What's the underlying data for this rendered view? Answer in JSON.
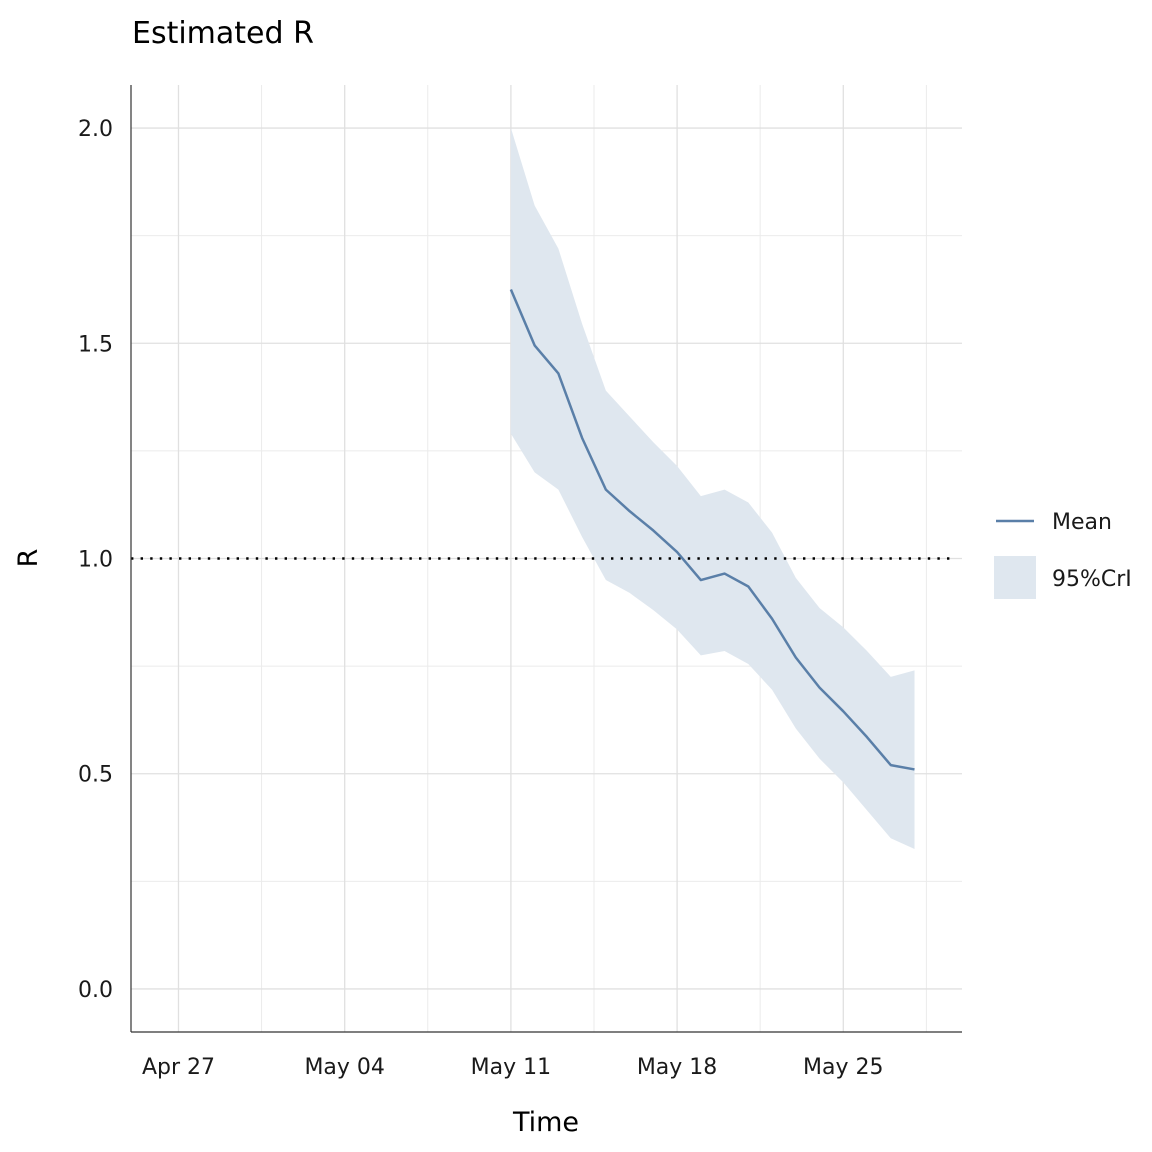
{
  "chart_data": {
    "type": "line",
    "title": "Estimated R",
    "xlabel": "Time",
    "ylabel": "R",
    "xlim": [
      "2020-04-25",
      "2020-05-30"
    ],
    "ylim": [
      -0.1,
      2.1
    ],
    "x_ticks": [
      "2020-04-27",
      "2020-05-04",
      "2020-05-11",
      "2020-05-18",
      "2020-05-25"
    ],
    "x_tick_labels": [
      "Apr 27",
      "May 04",
      "May 11",
      "May 18",
      "May 25"
    ],
    "y_ticks": [
      0.0,
      0.5,
      1.0,
      1.5,
      2.0
    ],
    "y_tick_labels": [
      "0.0",
      "0.5",
      "1.0",
      "1.5",
      "2.0"
    ],
    "reference_line": {
      "y": 1.0,
      "style": "dotted",
      "color": "#000000"
    },
    "grid": true,
    "legend": {
      "position": "right"
    },
    "x": [
      "2020-05-11",
      "2020-05-12",
      "2020-05-13",
      "2020-05-14",
      "2020-05-15",
      "2020-05-16",
      "2020-05-17",
      "2020-05-18",
      "2020-05-19",
      "2020-05-20",
      "2020-05-21",
      "2020-05-22",
      "2020-05-23",
      "2020-05-24",
      "2020-05-25",
      "2020-05-26",
      "2020-05-27",
      "2020-05-28"
    ],
    "series": [
      {
        "name": "Mean",
        "kind": "line",
        "color": "#5a7fa8",
        "values": [
          1.625,
          1.495,
          1.43,
          1.28,
          1.16,
          1.11,
          1.065,
          1.015,
          0.95,
          0.965,
          0.935,
          0.86,
          0.77,
          0.7,
          0.645,
          0.585,
          0.52,
          0.51
        ]
      },
      {
        "name": "95%CrI",
        "kind": "band",
        "color": "#dfe7ef",
        "lower": [
          1.29,
          1.2,
          1.16,
          1.05,
          0.95,
          0.92,
          0.88,
          0.835,
          0.775,
          0.785,
          0.755,
          0.695,
          0.605,
          0.535,
          0.48,
          0.415,
          0.35,
          0.325
        ],
        "upper": [
          2.0,
          1.82,
          1.72,
          1.545,
          1.39,
          1.33,
          1.27,
          1.215,
          1.145,
          1.16,
          1.13,
          1.06,
          0.955,
          0.885,
          0.84,
          0.785,
          0.725,
          0.74
        ]
      }
    ]
  }
}
